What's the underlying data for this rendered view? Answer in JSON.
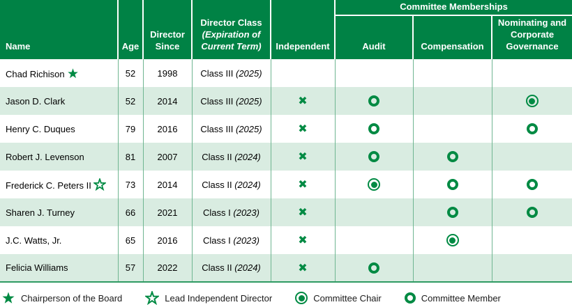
{
  "theme": {
    "header_green": "#008245",
    "icon_green": "#008A43",
    "row_alt_green": "#D9ECE1",
    "separator_green": "#6FB591",
    "bottom_border_green": "#2E9A62"
  },
  "icons": {
    "independent_x": "✖",
    "committee_member": "open-ring",
    "committee_chair": "ring-with-dot",
    "chairperson": "filled-star",
    "lead_independent": "open-star"
  },
  "header": {
    "name": "Name",
    "age": "Age",
    "director_since": "Director Since",
    "director_class_line1": "Director Class",
    "director_class_line2": "(Expiration of Current Term)",
    "independent": "Independent",
    "committee_memberships": "Committee Memberships",
    "audit": "Audit",
    "compensation": "Compensation",
    "nominating": "Nominating and Corporate Governance"
  },
  "table": {
    "rows": [
      {
        "name": "Chad Richison",
        "badge": "chairperson",
        "age": "52",
        "since": "1998",
        "class_name": "Class III",
        "class_term": "(2025)",
        "independent": false,
        "audit": "none",
        "compensation": "none",
        "nominating": "none"
      },
      {
        "name": "Jason D. Clark",
        "badge": null,
        "age": "52",
        "since": "2014",
        "class_name": "Class III",
        "class_term": "(2025)",
        "independent": true,
        "audit": "member",
        "compensation": "none",
        "nominating": "chair"
      },
      {
        "name": "Henry C. Duques",
        "badge": null,
        "age": "79",
        "since": "2016",
        "class_name": "Class III",
        "class_term": "(2025)",
        "independent": true,
        "audit": "member",
        "compensation": "none",
        "nominating": "member"
      },
      {
        "name": "Robert J. Levenson",
        "badge": null,
        "age": "81",
        "since": "2007",
        "class_name": "Class II",
        "class_term": "(2024)",
        "independent": true,
        "audit": "member",
        "compensation": "member",
        "nominating": "none"
      },
      {
        "name": "Frederick C. Peters II",
        "badge": "lead_independent",
        "age": "73",
        "since": "2014",
        "class_name": "Class II",
        "class_term": "(2024)",
        "independent": true,
        "audit": "chair",
        "compensation": "member",
        "nominating": "member"
      },
      {
        "name": "Sharen J. Turney",
        "badge": null,
        "age": "66",
        "since": "2021",
        "class_name": "Class I",
        "class_term": "(2023)",
        "independent": true,
        "audit": "none",
        "compensation": "member",
        "nominating": "member"
      },
      {
        "name": "J.C. Watts, Jr.",
        "badge": null,
        "age": "65",
        "since": "2016",
        "class_name": "Class I",
        "class_term": "(2023)",
        "independent": true,
        "audit": "none",
        "compensation": "chair",
        "nominating": "none"
      },
      {
        "name": "Felicia Williams",
        "badge": null,
        "age": "57",
        "since": "2022",
        "class_name": "Class II",
        "class_term": "(2024)",
        "independent": true,
        "audit": "member",
        "compensation": "none",
        "nominating": "none"
      }
    ]
  },
  "legend": {
    "items": [
      {
        "icon": "star-filled",
        "label": "Chairperson of the Board"
      },
      {
        "icon": "star-open",
        "label": "Lead Independent Director"
      },
      {
        "icon": "chair",
        "label": "Committee Chair"
      },
      {
        "icon": "member",
        "label": "Committee Member"
      }
    ]
  }
}
